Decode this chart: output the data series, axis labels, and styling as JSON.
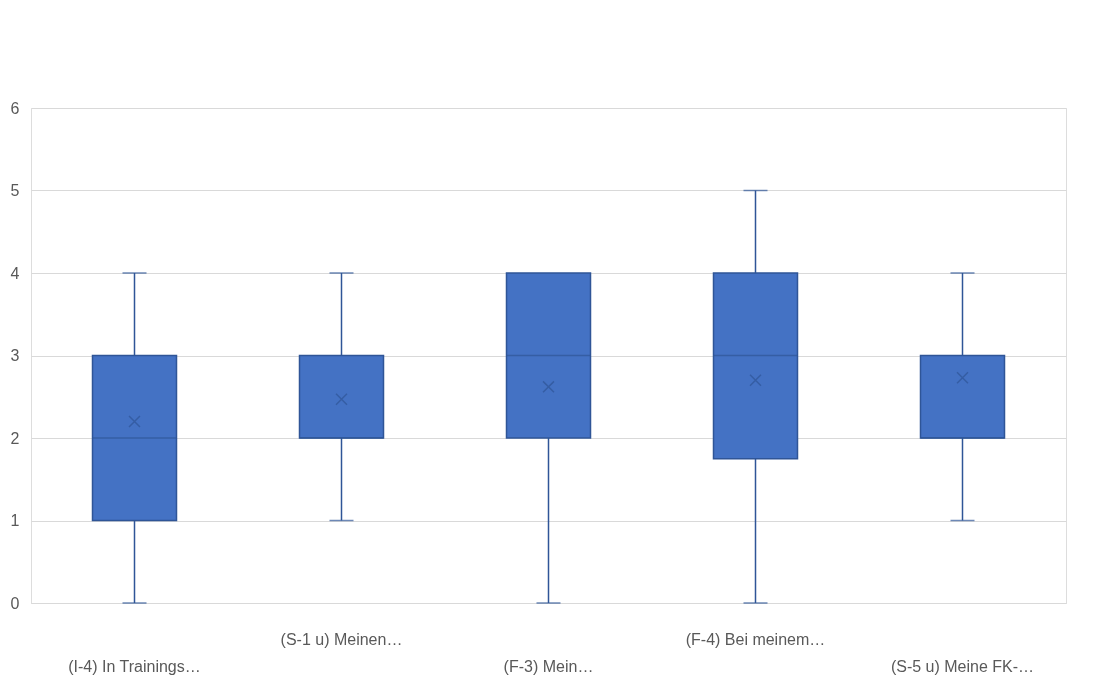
{
  "chart_data": {
    "type": "box",
    "categories": [
      "(I-4) In Trainings…",
      "(S-1 u) Meinen…",
      "(F-3) Mein…",
      "(F-4) Bei meinem…",
      "(S-5 u) Meine FK-…"
    ],
    "boxes": [
      {
        "low": 0,
        "q1": 1,
        "median": 2,
        "q3": 3,
        "high": 4,
        "mean": 2.2
      },
      {
        "low": 1,
        "q1": 2,
        "median": 2,
        "q3": 3,
        "high": 4,
        "mean": 2.47
      },
      {
        "low": 0,
        "q1": 2,
        "median": 3,
        "q3": 4,
        "high": 4,
        "mean": 2.62
      },
      {
        "low": 0,
        "q1": 1.75,
        "median": 3,
        "q3": 4,
        "high": 5,
        "mean": 2.7
      },
      {
        "low": 1,
        "q1": 2,
        "median": 2,
        "q3": 3,
        "high": 4,
        "mean": 2.73
      }
    ],
    "color": "#4472c4",
    "ylim": [
      0,
      6
    ],
    "yticks": [
      0,
      1,
      2,
      3,
      4,
      5,
      6
    ],
    "grid": true
  }
}
